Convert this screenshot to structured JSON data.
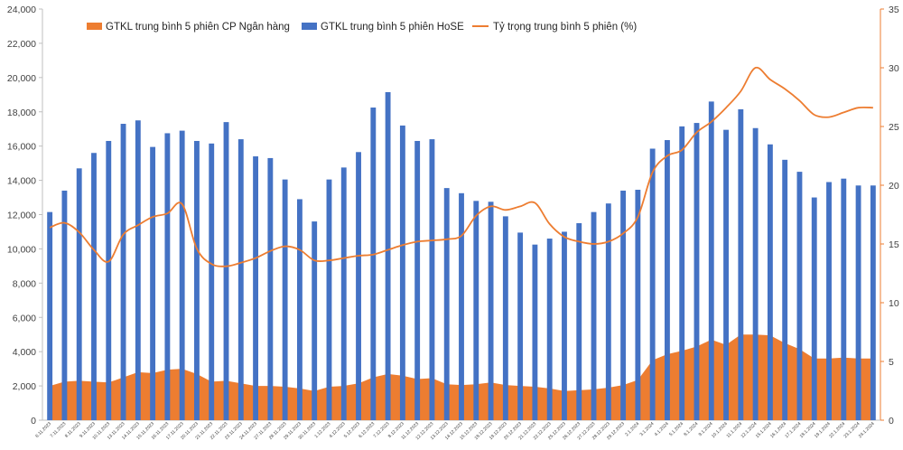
{
  "chart_data": {
    "type": "bar+area+line",
    "title": "",
    "legend_position": "top",
    "categories": [
      "6.11.2023",
      "7.11.2023",
      "8.11.2023",
      "9.11.2023",
      "10.11.2023",
      "13.11.2023",
      "14.11.2023",
      "15.11.2023",
      "16.11.2023",
      "17.11.2023",
      "20.11.2023",
      "21.11.2023",
      "22.11.2023",
      "23.11.2023",
      "24.11.2023",
      "27.11.2023",
      "28.11.2023",
      "29.11.2023",
      "30.11.2023",
      "1.12.2023",
      "4.12.2023",
      "5.12.2023",
      "6.12.2023",
      "7.12.2023",
      "8.12.2023",
      "11.12.2023",
      "12.12.2023",
      "13.12.2023",
      "14.12.2023",
      "15.12.2023",
      "18.12.2023",
      "19.12.2023",
      "20.12.2023",
      "21.12.2023",
      "22.12.2023",
      "25.12.2023",
      "26.12.2023",
      "27.12.2023",
      "28.12.2023",
      "29.12.2023",
      "2.1.2024",
      "3.1.2024",
      "4.1.2024",
      "5.1.2024",
      "8.1.2024",
      "9.1.2024",
      "10.1.2024",
      "11.1.2024",
      "12.1.2024",
      "15.1.2024",
      "16.1.2024",
      "17.1.2024",
      "18.1.2024",
      "19.1.2024",
      "22.1.2024",
      "23.1.2024",
      "24.1.2024"
    ],
    "series": [
      {
        "name": "GTKL trung bình 5 phiên CP Ngân hàng",
        "type": "area",
        "axis": "left",
        "color": "#ED7D31",
        "values": [
          2000,
          2250,
          2300,
          2250,
          2200,
          2500,
          2800,
          2750,
          2950,
          3000,
          2700,
          2250,
          2300,
          2150,
          2000,
          2000,
          1950,
          1850,
          1700,
          1950,
          2000,
          2150,
          2500,
          2700,
          2600,
          2400,
          2450,
          2100,
          2050,
          2100,
          2200,
          2050,
          2000,
          1950,
          1850,
          1700,
          1750,
          1800,
          1900,
          2050,
          2350,
          3500,
          3850,
          4050,
          4300,
          4700,
          4400,
          5000,
          5000,
          4950,
          4500,
          4150,
          3600,
          3600,
          3650,
          3600,
          3600
        ]
      },
      {
        "name": "GTKL trung bình 5 phiên HoSE",
        "type": "bar",
        "axis": "left",
        "color": "#4472C4",
        "values": [
          12150,
          13400,
          14700,
          15600,
          16300,
          17300,
          17500,
          15950,
          16750,
          16900,
          16300,
          16150,
          17400,
          16400,
          15400,
          15300,
          14050,
          12900,
          11600,
          14050,
          14750,
          15650,
          18250,
          19150,
          17200,
          16300,
          16400,
          13550,
          13250,
          12800,
          12750,
          11900,
          10950,
          10250,
          10600,
          11000,
          11500,
          12150,
          12650,
          13400,
          13450,
          15850,
          16350,
          17150,
          17350,
          18600,
          16950,
          18150,
          17050,
          16100,
          15200,
          14500,
          13000,
          13900,
          14100,
          13700,
          13700
        ]
      },
      {
        "name": "Tỷ trọng trung bình 5 phiên (%)",
        "type": "line",
        "axis": "right",
        "color": "#ED7D31",
        "values": [
          16.4,
          16.8,
          16.0,
          14.5,
          13.5,
          15.8,
          16.6,
          17.3,
          17.6,
          18.4,
          14.6,
          13.3,
          13.1,
          13.4,
          13.8,
          14.4,
          14.8,
          14.5,
          13.6,
          13.6,
          13.8,
          14.0,
          14.1,
          14.5,
          14.9,
          15.2,
          15.3,
          15.4,
          15.7,
          17.4,
          18.2,
          17.9,
          18.2,
          18.5,
          16.7,
          15.6,
          15.2,
          15.0,
          15.2,
          15.9,
          17.3,
          21.1,
          22.5,
          23.0,
          24.5,
          25.4,
          26.6,
          28.0,
          30.0,
          29.0,
          28.2,
          27.2,
          26.0,
          25.8,
          26.2,
          26.6,
          26.6
        ]
      }
    ],
    "y_left": {
      "min": 0,
      "max": 24000,
      "ticks": [
        "0",
        "2,000",
        "4,000",
        "6,000",
        "8,000",
        "10,000",
        "12,000",
        "14,000",
        "16,000",
        "18,000",
        "20,000",
        "22,000",
        "24,000"
      ]
    },
    "y_right": {
      "min": 0,
      "max": 35,
      "ticks": [
        "0",
        "5",
        "10",
        "15",
        "20",
        "25",
        "30",
        "35"
      ]
    }
  }
}
